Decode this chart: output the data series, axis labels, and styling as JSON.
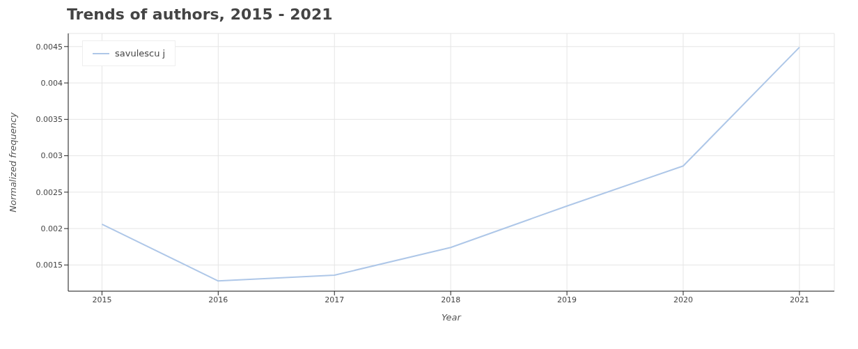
{
  "chart_data": {
    "type": "line",
    "title": "Trends of authors, 2015 - 2021",
    "xlabel": "Year",
    "ylabel": "Normalized frequency",
    "x": [
      2015,
      2016,
      2017,
      2018,
      2019,
      2020,
      2021
    ],
    "series": [
      {
        "name": "savulescu j",
        "color": "#aec7e8",
        "values": [
          0.00206,
          0.00128,
          0.00136,
          0.00174,
          0.00231,
          0.00286,
          0.00449
        ]
      }
    ],
    "xlim": [
      2014.71,
      2021.3
    ],
    "xticks": [
      2015,
      2016,
      2017,
      2018,
      2019,
      2020,
      2021
    ],
    "ylim": [
      0.00114,
      0.00468
    ],
    "yticks": [
      0.0015,
      0.002,
      0.0025,
      0.003,
      0.0035,
      0.004,
      0.0045
    ],
    "grid": true,
    "legend": "top left",
    "marker": "none",
    "line_style": "solid"
  }
}
